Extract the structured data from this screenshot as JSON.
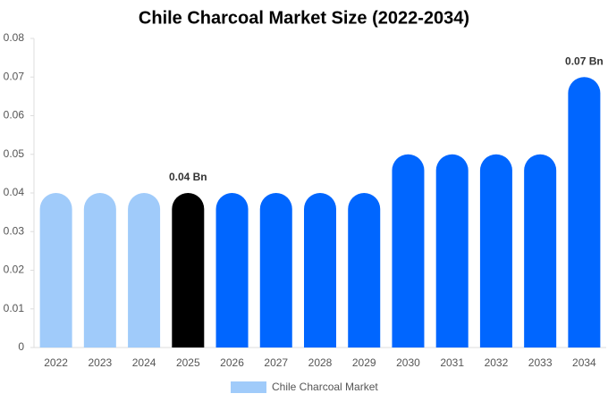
{
  "chart_data": {
    "type": "bar",
    "title": "Chile Charcoal Market Size (2022-2034)",
    "categories": [
      "2022",
      "2023",
      "2024",
      "2025",
      "2026",
      "2027",
      "2028",
      "2029",
      "2030",
      "2031",
      "2032",
      "2033",
      "2034"
    ],
    "series": [
      {
        "name": "Chile Charcoal Market",
        "color": "#a0cbfa",
        "values": [
          0.04,
          0.04,
          0.04,
          0.04,
          0.04,
          0.04,
          0.04,
          0.04,
          0.05,
          0.05,
          0.05,
          0.05,
          0.07
        ],
        "value_labels": [
          null,
          null,
          null,
          "0.04 Bn",
          null,
          null,
          null,
          null,
          null,
          null,
          null,
          null,
          "0.07 Bn"
        ],
        "colors": [
          "#a0cbfa",
          "#a0cbfa",
          "#a0cbfa",
          "#000000",
          "#0066ff",
          "#0066ff",
          "#0066ff",
          "#0066ff",
          "#0066ff",
          "#0066ff",
          "#0066ff",
          "#0066ff",
          "#0066ff"
        ]
      }
    ],
    "ylim": [
      0,
      0.08
    ],
    "yticks": [
      0,
      0.01,
      0.02,
      0.03,
      0.04,
      0.05,
      0.06,
      0.07,
      0.08
    ],
    "grid": false,
    "legend": "bottom"
  }
}
